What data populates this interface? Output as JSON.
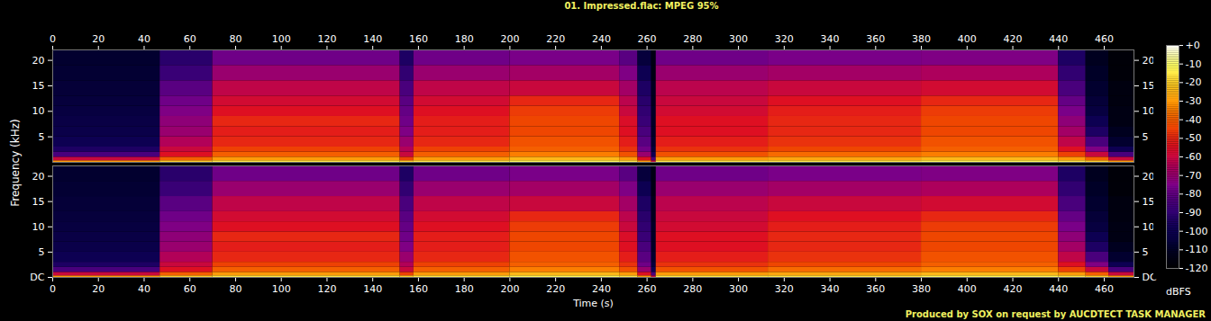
{
  "chart_data": {
    "type": "spectrogram",
    "title": "01. Impressed.flac: MPEG 95%",
    "caption": "Produced by SOX on request by AUCDTECT TASK MANAGER",
    "xlabel": "Time (s)",
    "ylabel": "Frequency (kHz)",
    "xlim": [
      0,
      473
    ],
    "xticks": [
      0,
      20,
      40,
      60,
      80,
      100,
      120,
      140,
      160,
      180,
      200,
      220,
      240,
      260,
      280,
      300,
      320,
      340,
      360,
      380,
      400,
      420,
      440,
      460
    ],
    "ylim": [
      0,
      22.05
    ],
    "x_edges": [
      0,
      47,
      70,
      152,
      158,
      200,
      248,
      256,
      262,
      264,
      313,
      380,
      440,
      452,
      462,
      473
    ],
    "y_edges": [
      0,
      0.3,
      1,
      2,
      3,
      5,
      7,
      9,
      11,
      13,
      16,
      19,
      22.05
    ],
    "channels": [
      {
        "yticks": [
          5,
          10,
          15,
          20
        ],
        "cells": [
          [
            -30,
            -60,
            -85,
            -95,
            -100,
            -102,
            -103,
            -104,
            -105,
            -106,
            -107,
            -108
          ],
          [
            -20,
            -40,
            -55,
            -60,
            -65,
            -70,
            -72,
            -75,
            -78,
            -82,
            -88,
            -92
          ],
          [
            -15,
            -30,
            -40,
            -45,
            -50,
            -52,
            -50,
            -55,
            -58,
            -62,
            -70,
            -78
          ],
          [
            -20,
            -45,
            -60,
            -65,
            -70,
            -75,
            -78,
            -80,
            -82,
            -85,
            -90,
            -95
          ],
          [
            -15,
            -30,
            -40,
            -45,
            -50,
            -52,
            -52,
            -55,
            -58,
            -62,
            -70,
            -78
          ],
          [
            -12,
            -25,
            -35,
            -40,
            -42,
            -44,
            -44,
            -46,
            -50,
            -60,
            -68,
            -76
          ],
          [
            -15,
            -30,
            -42,
            -48,
            -52,
            -55,
            -56,
            -60,
            -63,
            -68,
            -75,
            -82
          ],
          [
            -30,
            -55,
            -70,
            -78,
            -82,
            -85,
            -88,
            -90,
            -92,
            -95,
            -100,
            -105
          ],
          [
            -60,
            -85,
            -100,
            -105,
            -108,
            -110,
            -110,
            -110,
            -112,
            -112,
            -115,
            -115
          ],
          [
            -15,
            -30,
            -42,
            -48,
            -52,
            -55,
            -55,
            -58,
            -60,
            -63,
            -70,
            -78
          ],
          [
            -15,
            -28,
            -38,
            -44,
            -48,
            -50,
            -50,
            -52,
            -55,
            -60,
            -68,
            -76
          ],
          [
            -12,
            -25,
            -35,
            -40,
            -42,
            -44,
            -44,
            -46,
            -50,
            -58,
            -66,
            -75
          ],
          [
            -15,
            -30,
            -45,
            -55,
            -62,
            -68,
            -72,
            -76,
            -80,
            -85,
            -90,
            -95
          ],
          [
            -20,
            -40,
            -60,
            -75,
            -85,
            -95,
            -100,
            -104,
            -106,
            -108,
            -110,
            -112
          ],
          [
            -30,
            -60,
            -85,
            -100,
            -108,
            -112,
            -115,
            -115,
            -116,
            -116,
            -118,
            -118
          ]
        ]
      },
      {
        "yticks": [
          {
            "value": 0,
            "label": "DC"
          },
          5,
          10,
          15,
          20
        ],
        "cells": [
          [
            -30,
            -60,
            -85,
            -95,
            -100,
            -102,
            -103,
            -104,
            -105,
            -106,
            -107,
            -108
          ],
          [
            -20,
            -40,
            -55,
            -60,
            -65,
            -70,
            -72,
            -75,
            -78,
            -82,
            -88,
            -92
          ],
          [
            -15,
            -30,
            -40,
            -45,
            -50,
            -52,
            -50,
            -55,
            -58,
            -62,
            -70,
            -78
          ],
          [
            -20,
            -45,
            -60,
            -65,
            -70,
            -75,
            -78,
            -80,
            -82,
            -85,
            -90,
            -95
          ],
          [
            -15,
            -30,
            -40,
            -45,
            -50,
            -52,
            -52,
            -55,
            -58,
            -62,
            -70,
            -78
          ],
          [
            -12,
            -25,
            -35,
            -40,
            -42,
            -44,
            -44,
            -46,
            -50,
            -60,
            -68,
            -76
          ],
          [
            -15,
            -30,
            -42,
            -48,
            -52,
            -55,
            -56,
            -60,
            -63,
            -68,
            -75,
            -82
          ],
          [
            -30,
            -55,
            -70,
            -78,
            -82,
            -85,
            -88,
            -90,
            -92,
            -95,
            -100,
            -105
          ],
          [
            -60,
            -85,
            -100,
            -105,
            -108,
            -110,
            -110,
            -110,
            -112,
            -112,
            -115,
            -115
          ],
          [
            -15,
            -30,
            -42,
            -48,
            -52,
            -55,
            -55,
            -58,
            -60,
            -63,
            -70,
            -78
          ],
          [
            -15,
            -28,
            -38,
            -44,
            -48,
            -50,
            -50,
            -52,
            -55,
            -60,
            -68,
            -76
          ],
          [
            -12,
            -25,
            -35,
            -40,
            -42,
            -44,
            -44,
            -46,
            -50,
            -58,
            -66,
            -75
          ],
          [
            -15,
            -30,
            -45,
            -55,
            -62,
            -68,
            -72,
            -76,
            -80,
            -85,
            -90,
            -95
          ],
          [
            -20,
            -40,
            -60,
            -75,
            -85,
            -95,
            -100,
            -104,
            -106,
            -108,
            -110,
            -112
          ],
          [
            -30,
            -60,
            -85,
            -100,
            -108,
            -112,
            -115,
            -115,
            -116,
            -116,
            -118,
            -118
          ]
        ]
      }
    ],
    "colorbar": {
      "label": "dBFS",
      "range": [
        -120,
        0
      ],
      "ticks": [
        {
          "value": 0,
          "label": "+0"
        },
        -10,
        -20,
        -30,
        -40,
        -50,
        -60,
        -70,
        -80,
        -90,
        -100,
        -110,
        -120
      ]
    }
  }
}
